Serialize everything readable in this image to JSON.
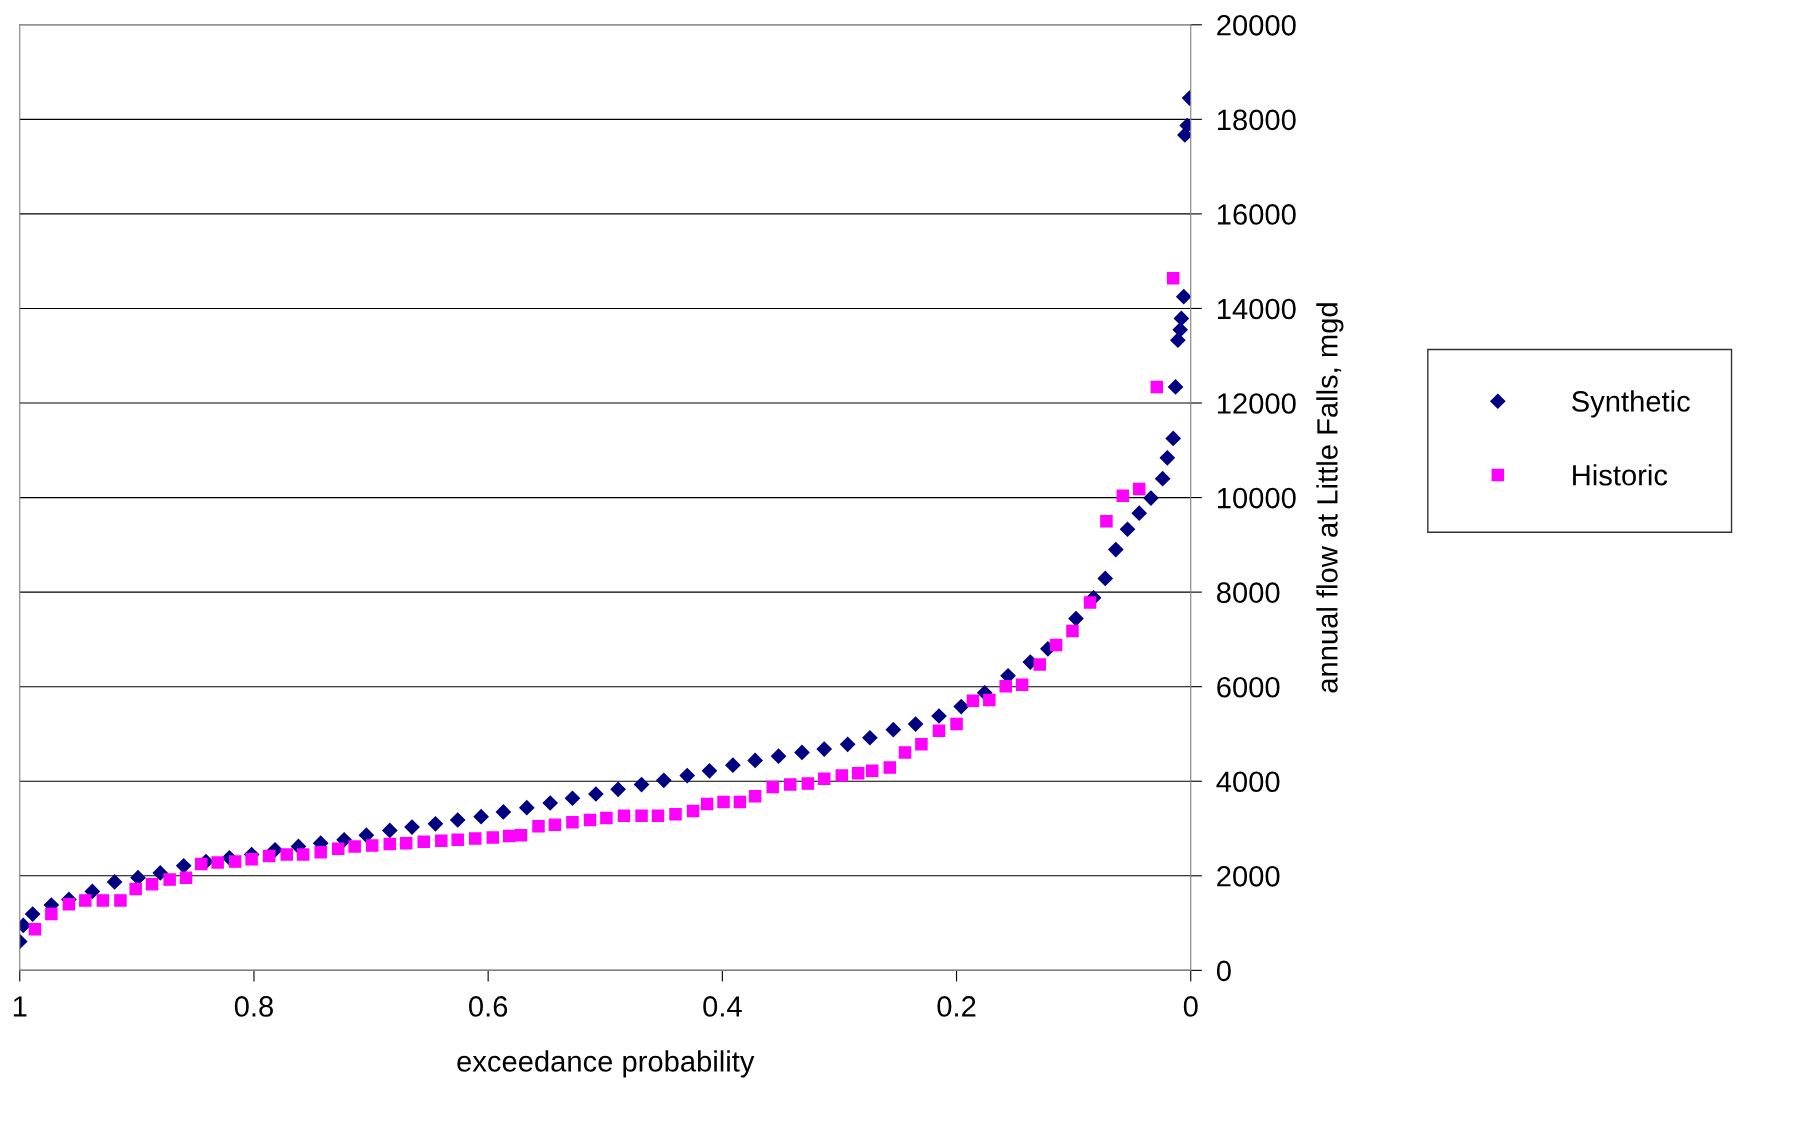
{
  "chart_data": {
    "type": "scatter",
    "xlabel": "exceedance probability",
    "ylabel": "annual flow at Little Falls, mgd",
    "xlim": [
      1,
      0
    ],
    "xticks": [
      1,
      0.8,
      0.6,
      0.4,
      0.2,
      0
    ],
    "ylim": [
      0,
      20000
    ],
    "yticks": [
      0,
      2000,
      4000,
      6000,
      8000,
      10000,
      12000,
      14000,
      16000,
      18000,
      20000
    ],
    "grid": "y",
    "legend": "right",
    "series": [
      {
        "name": "Synthetic",
        "color": "#000080",
        "marker": "diamond",
        "x": [
          1.0,
          0.997,
          0.989,
          0.973,
          0.958,
          0.938,
          0.919,
          0.899,
          0.88,
          0.86,
          0.841,
          0.821,
          0.802,
          0.782,
          0.762,
          0.743,
          0.723,
          0.704,
          0.684,
          0.665,
          0.645,
          0.626,
          0.606,
          0.587,
          0.567,
          0.547,
          0.528,
          0.508,
          0.489,
          0.469,
          0.45,
          0.43,
          0.411,
          0.391,
          0.372,
          0.352,
          0.332,
          0.313,
          0.293,
          0.274,
          0.254,
          0.235,
          0.215,
          0.196,
          0.176,
          0.156,
          0.137,
          0.122,
          0.098,
          0.083,
          0.073,
          0.064,
          0.054,
          0.044,
          0.034,
          0.024,
          0.02,
          0.015,
          0.013,
          0.011,
          0.009,
          0.008,
          0.006,
          0.005,
          0.003,
          0.001
        ],
        "values": [
          610,
          950,
          1190,
          1380,
          1500,
          1670,
          1870,
          1960,
          2060,
          2210,
          2300,
          2380,
          2450,
          2550,
          2620,
          2690,
          2760,
          2860,
          2960,
          3030,
          3100,
          3180,
          3250,
          3350,
          3440,
          3540,
          3640,
          3730,
          3830,
          3930,
          4020,
          4120,
          4220,
          4340,
          4440,
          4530,
          4610,
          4680,
          4780,
          4920,
          5090,
          5210,
          5380,
          5580,
          5870,
          6230,
          6520,
          6800,
          7440,
          7880,
          8290,
          8900,
          9330,
          9670,
          9990,
          10400,
          10840,
          11250,
          12340,
          13330,
          13550,
          13790,
          14250,
          17670,
          17870,
          18450
        ]
      },
      {
        "name": "Historic",
        "color": "#ff00ff",
        "marker": "square",
        "x": [
          0.987,
          0.973,
          0.958,
          0.944,
          0.929,
          0.914,
          0.901,
          0.887,
          0.872,
          0.858,
          0.845,
          0.831,
          0.816,
          0.802,
          0.787,
          0.772,
          0.758,
          0.743,
          0.728,
          0.714,
          0.699,
          0.684,
          0.67,
          0.655,
          0.64,
          0.626,
          0.611,
          0.596,
          0.582,
          0.572,
          0.557,
          0.543,
          0.528,
          0.513,
          0.499,
          0.484,
          0.469,
          0.455,
          0.44,
          0.425,
          0.413,
          0.399,
          0.385,
          0.372,
          0.357,
          0.342,
          0.327,
          0.313,
          0.298,
          0.284,
          0.272,
          0.257,
          0.244,
          0.23,
          0.215,
          0.2,
          0.186,
          0.172,
          0.158,
          0.144,
          0.129,
          0.115,
          0.101,
          0.086,
          0.072,
          0.058,
          0.044,
          0.029,
          0.015
        ],
        "values": [
          870,
          1190,
          1400,
          1480,
          1480,
          1480,
          1720,
          1820,
          1920,
          1960,
          2250,
          2280,
          2300,
          2350,
          2420,
          2450,
          2450,
          2500,
          2570,
          2620,
          2640,
          2670,
          2690,
          2720,
          2740,
          2760,
          2790,
          2810,
          2840,
          2860,
          3050,
          3080,
          3130,
          3180,
          3220,
          3270,
          3270,
          3270,
          3300,
          3370,
          3520,
          3560,
          3560,
          3680,
          3880,
          3930,
          3950,
          4050,
          4120,
          4170,
          4220,
          4290,
          4610,
          4780,
          5070,
          5210,
          5700,
          5720,
          6010,
          6040,
          6470,
          6880,
          7180,
          7780,
          9500,
          10040,
          10180,
          12340,
          14640
        ]
      }
    ]
  }
}
